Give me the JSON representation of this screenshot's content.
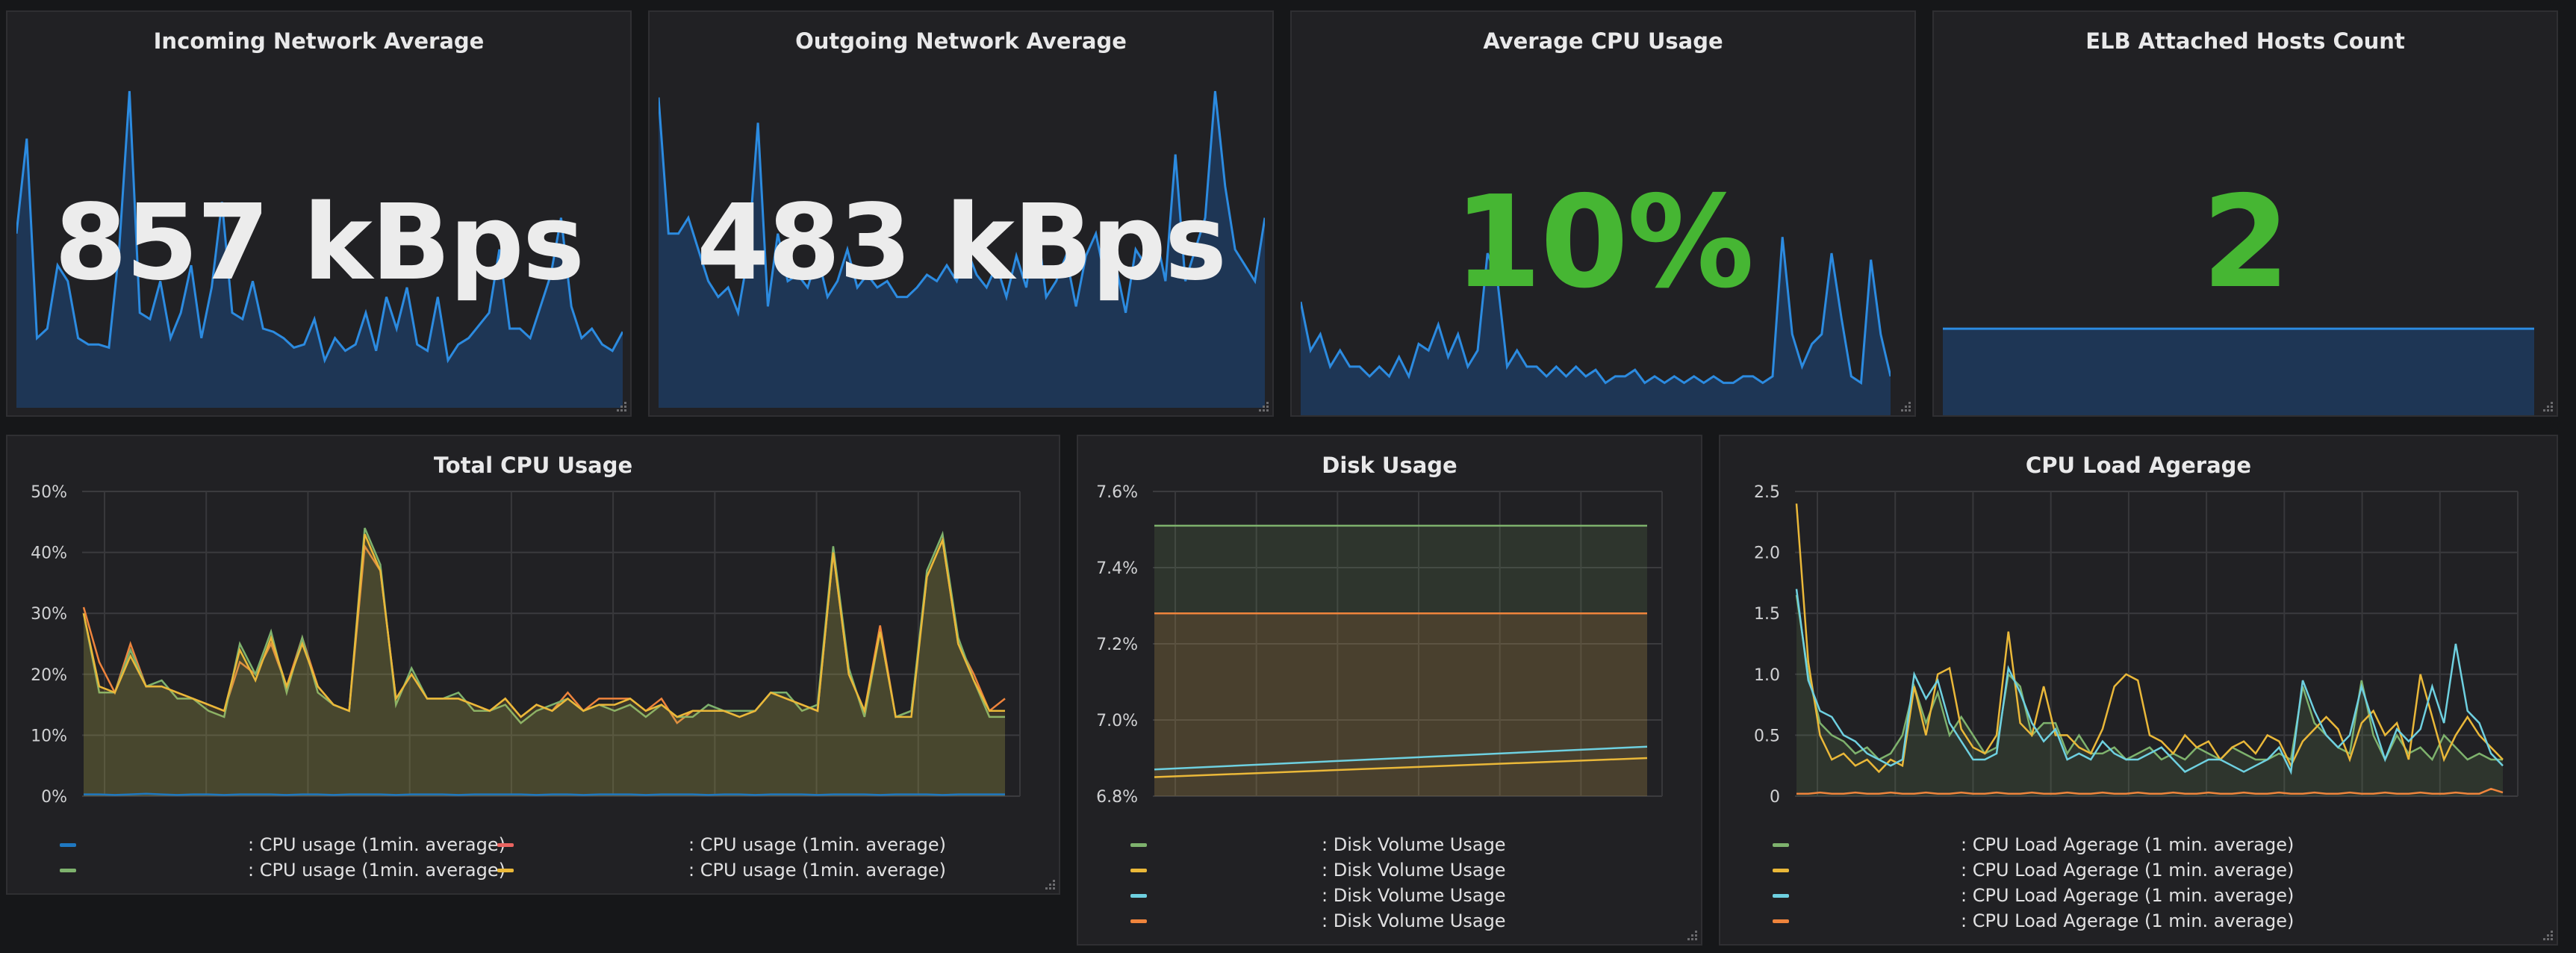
{
  "stats": [
    {
      "title": "Incoming Network Average",
      "value": "857 kBps",
      "value_color": "#ececec",
      "series": [
        0.55,
        0.85,
        0.22,
        0.25,
        0.45,
        0.4,
        0.22,
        0.2,
        0.2,
        0.19,
        0.5,
        1.0,
        0.3,
        0.28,
        0.4,
        0.22,
        0.3,
        0.45,
        0.22,
        0.38,
        0.65,
        0.3,
        0.28,
        0.4,
        0.25,
        0.24,
        0.22,
        0.19,
        0.2,
        0.28,
        0.15,
        0.22,
        0.18,
        0.2,
        0.3,
        0.18,
        0.35,
        0.25,
        0.38,
        0.2,
        0.18,
        0.35,
        0.15,
        0.2,
        0.22,
        0.26,
        0.3,
        0.5,
        0.25,
        0.25,
        0.22,
        0.32,
        0.42,
        0.6,
        0.32,
        0.22,
        0.25,
        0.2,
        0.18,
        0.24
      ]
    },
    {
      "title": "Outgoing Network Average",
      "value": "483 kBps",
      "value_color": "#ececec",
      "series": [
        0.98,
        0.55,
        0.55,
        0.6,
        0.5,
        0.4,
        0.35,
        0.38,
        0.3,
        0.48,
        0.9,
        0.32,
        0.55,
        0.4,
        0.42,
        0.38,
        0.48,
        0.35,
        0.4,
        0.5,
        0.38,
        0.42,
        0.38,
        0.4,
        0.35,
        0.35,
        0.38,
        0.42,
        0.4,
        0.45,
        0.4,
        0.5,
        0.42,
        0.38,
        0.45,
        0.35,
        0.48,
        0.38,
        0.6,
        0.35,
        0.4,
        0.48,
        0.32,
        0.48,
        0.55,
        0.4,
        0.45,
        0.3,
        0.5,
        0.45,
        0.55,
        0.4,
        0.8,
        0.4,
        0.5,
        0.6,
        1.0,
        0.7,
        0.5,
        0.45,
        0.4,
        0.6
      ]
    },
    {
      "title": "Average CPU Usage",
      "value": "10%",
      "value_color": "#46b633",
      "series": [
        0.35,
        0.2,
        0.25,
        0.15,
        0.2,
        0.15,
        0.15,
        0.12,
        0.15,
        0.12,
        0.18,
        0.12,
        0.22,
        0.2,
        0.28,
        0.18,
        0.25,
        0.15,
        0.2,
        0.5,
        0.42,
        0.15,
        0.2,
        0.15,
        0.15,
        0.12,
        0.15,
        0.12,
        0.15,
        0.12,
        0.14,
        0.1,
        0.12,
        0.12,
        0.14,
        0.1,
        0.12,
        0.1,
        0.12,
        0.1,
        0.12,
        0.1,
        0.12,
        0.1,
        0.1,
        0.12,
        0.12,
        0.1,
        0.12,
        0.55,
        0.25,
        0.15,
        0.22,
        0.25,
        0.5,
        0.3,
        0.12,
        0.1,
        0.48,
        0.25,
        0.12
      ]
    },
    {
      "title": "ELB Attached Hosts Count",
      "value": "2",
      "value_color": "#46b633",
      "series": [
        0.95,
        0.95,
        0.95,
        0.95,
        0.95,
        0.95,
        0.95,
        0.95,
        0.95,
        0.95
      ]
    }
  ],
  "total_cpu": {
    "title": "Total CPU Usage",
    "yticks": [
      "50%",
      "40%",
      "30%",
      "20%",
      "10%",
      "0%"
    ],
    "ymax": 50,
    "legend": [
      {
        "text": ": CPU usage (1min. average)",
        "color": "#1f78c1"
      },
      {
        "text": ": CPU usage (1min. average)",
        "color": "#ea6460"
      },
      {
        "text": ": CPU usage (1min. average)",
        "color": "#7eb26d"
      },
      {
        "text": ": CPU usage (1min. average)",
        "color": "#eab839"
      }
    ],
    "series": [
      {
        "color": "#ef843c",
        "fill": false,
        "values": [
          31,
          22,
          17,
          25,
          18,
          18,
          17,
          16,
          15,
          14,
          22,
          20,
          25,
          18,
          26,
          18,
          15,
          14,
          41,
          37,
          16,
          20,
          16,
          16,
          16,
          15,
          14,
          16,
          13,
          15,
          14,
          17,
          14,
          16,
          16,
          16,
          14,
          16,
          12,
          14,
          14,
          14,
          13,
          14,
          17,
          16,
          15,
          14,
          40,
          20,
          14,
          28,
          13,
          14,
          36,
          42,
          25,
          20,
          14,
          16
        ]
      },
      {
        "color": "#7eb26d",
        "fill": true,
        "values": [
          30,
          17,
          17,
          24,
          18,
          19,
          16,
          16,
          14,
          13,
          25,
          20,
          27,
          17,
          26,
          17,
          15,
          14,
          44,
          38,
          15,
          21,
          16,
          16,
          17,
          14,
          14,
          15,
          12,
          14,
          15,
          16,
          14,
          15,
          14,
          15,
          13,
          15,
          13,
          13,
          15,
          14,
          14,
          14,
          17,
          17,
          14,
          15,
          41,
          21,
          13,
          27,
          13,
          14,
          37,
          43,
          26,
          19,
          13,
          13
        ]
      },
      {
        "color": "#eab839",
        "fill": true,
        "values": [
          30,
          18,
          17,
          23,
          18,
          18,
          17,
          16,
          15,
          14,
          24,
          19,
          26,
          18,
          25,
          18,
          15,
          14,
          43,
          37,
          16,
          20,
          16,
          16,
          16,
          15,
          14,
          16,
          13,
          15,
          14,
          16,
          14,
          15,
          15,
          16,
          14,
          15,
          13,
          14,
          14,
          14,
          13,
          14,
          17,
          16,
          15,
          14,
          40,
          20,
          14,
          27,
          13,
          13,
          36,
          42,
          25,
          19,
          14,
          14
        ]
      },
      {
        "color": "#1f78c1",
        "fill": false,
        "values": [
          0.3,
          0.3,
          0.2,
          0.3,
          0.4,
          0.3,
          0.2,
          0.3,
          0.3,
          0.2,
          0.3,
          0.3,
          0.3,
          0.2,
          0.3,
          0.3,
          0.2,
          0.3,
          0.3,
          0.3,
          0.2,
          0.3,
          0.3,
          0.3,
          0.2,
          0.3,
          0.3,
          0.3,
          0.3,
          0.2,
          0.3,
          0.3,
          0.2,
          0.3,
          0.3,
          0.3,
          0.2,
          0.3,
          0.3,
          0.3,
          0.2,
          0.3,
          0.3,
          0.2,
          0.3,
          0.3,
          0.3,
          0.2,
          0.3,
          0.3,
          0.3,
          0.2,
          0.3,
          0.3,
          0.3,
          0.2,
          0.3,
          0.3,
          0.3,
          0.3
        ]
      }
    ]
  },
  "disk": {
    "title": "Disk Usage",
    "yticks": [
      "7.6%",
      "7.4%",
      "7.2%",
      "7.0%",
      "6.8%"
    ],
    "ymin": 6.8,
    "ymax": 7.6,
    "legend": [
      {
        "text": ": Disk Volume Usage",
        "color": "#7eb26d"
      },
      {
        "text": ": Disk Volume Usage",
        "color": "#eab839"
      },
      {
        "text": ": Disk Volume Usage",
        "color": "#6ed0e0"
      },
      {
        "text": ": Disk Volume Usage",
        "color": "#ef843c"
      }
    ],
    "series": [
      {
        "color": "#7eb26d",
        "fill": true,
        "values": [
          7.51,
          7.51
        ]
      },
      {
        "color": "#ef843c",
        "fill": true,
        "values": [
          7.28,
          7.28
        ]
      },
      {
        "color": "#6ed0e0",
        "fill": false,
        "values": [
          6.87,
          6.93
        ]
      },
      {
        "color": "#eab839",
        "fill": false,
        "values": [
          6.85,
          6.9
        ]
      }
    ]
  },
  "load": {
    "title": "CPU Load Agerage",
    "yticks": [
      "2.5",
      "2.0",
      "1.5",
      "1.0",
      "0.5",
      "0"
    ],
    "ymax": 2.5,
    "legend": [
      {
        "text": ": CPU Load Agerage (1 min. average)",
        "color": "#7eb26d"
      },
      {
        "text": ": CPU Load Agerage (1 min. average)",
        "color": "#eab839"
      },
      {
        "text": ": CPU Load Agerage (1 min. average)",
        "color": "#6ed0e0"
      },
      {
        "text": ": CPU Load Agerage (1 min. average)",
        "color": "#ef843c"
      }
    ],
    "series": [
      {
        "color": "#7eb26d",
        "fill": true,
        "values": [
          1.65,
          1.0,
          0.6,
          0.5,
          0.45,
          0.35,
          0.4,
          0.3,
          0.35,
          0.5,
          0.9,
          0.6,
          0.85,
          0.5,
          0.65,
          0.5,
          0.35,
          0.4,
          1.0,
          0.9,
          0.5,
          0.6,
          0.6,
          0.35,
          0.5,
          0.35,
          0.35,
          0.4,
          0.3,
          0.35,
          0.4,
          0.3,
          0.35,
          0.3,
          0.4,
          0.35,
          0.3,
          0.4,
          0.35,
          0.3,
          0.3,
          0.35,
          0.3,
          0.9,
          0.6,
          0.5,
          0.4,
          0.35,
          0.95,
          0.5,
          0.3,
          0.5,
          0.35,
          0.4,
          0.3,
          0.5,
          0.4,
          0.3,
          0.35,
          0.3,
          0.3
        ]
      },
      {
        "color": "#eab839",
        "fill": false,
        "values": [
          2.4,
          1.1,
          0.5,
          0.3,
          0.35,
          0.25,
          0.3,
          0.2,
          0.3,
          0.25,
          0.9,
          0.5,
          1.0,
          1.05,
          0.55,
          0.4,
          0.35,
          0.5,
          1.35,
          0.6,
          0.5,
          0.9,
          0.5,
          0.5,
          0.4,
          0.35,
          0.55,
          0.9,
          1.0,
          0.95,
          0.5,
          0.45,
          0.35,
          0.5,
          0.4,
          0.45,
          0.3,
          0.4,
          0.45,
          0.35,
          0.5,
          0.45,
          0.25,
          0.45,
          0.55,
          0.65,
          0.55,
          0.3,
          0.6,
          0.7,
          0.5,
          0.6,
          0.3,
          1.0,
          0.65,
          0.3,
          0.5,
          0.65,
          0.5,
          0.4,
          0.3
        ]
      },
      {
        "color": "#6ed0e0",
        "fill": false,
        "values": [
          1.7,
          0.95,
          0.7,
          0.65,
          0.5,
          0.45,
          0.35,
          0.3,
          0.25,
          0.3,
          1.0,
          0.8,
          0.95,
          0.6,
          0.45,
          0.3,
          0.3,
          0.35,
          1.05,
          0.85,
          0.6,
          0.45,
          0.55,
          0.3,
          0.35,
          0.3,
          0.45,
          0.35,
          0.3,
          0.3,
          0.35,
          0.4,
          0.3,
          0.2,
          0.25,
          0.3,
          0.3,
          0.25,
          0.2,
          0.25,
          0.3,
          0.4,
          0.2,
          0.95,
          0.7,
          0.5,
          0.4,
          0.5,
          0.9,
          0.6,
          0.3,
          0.55,
          0.45,
          0.55,
          0.9,
          0.6,
          1.25,
          0.7,
          0.6,
          0.35,
          0.25
        ]
      },
      {
        "color": "#ef843c",
        "fill": false,
        "values": [
          0.02,
          0.02,
          0.03,
          0.02,
          0.02,
          0.03,
          0.02,
          0.02,
          0.03,
          0.02,
          0.02,
          0.03,
          0.02,
          0.02,
          0.03,
          0.02,
          0.02,
          0.03,
          0.02,
          0.02,
          0.03,
          0.02,
          0.02,
          0.03,
          0.02,
          0.02,
          0.03,
          0.02,
          0.02,
          0.03,
          0.02,
          0.02,
          0.03,
          0.02,
          0.02,
          0.03,
          0.02,
          0.02,
          0.03,
          0.02,
          0.02,
          0.03,
          0.02,
          0.02,
          0.03,
          0.02,
          0.02,
          0.03,
          0.02,
          0.02,
          0.03,
          0.02,
          0.02,
          0.03,
          0.02,
          0.02,
          0.03,
          0.02,
          0.02,
          0.06,
          0.03
        ]
      }
    ]
  }
}
